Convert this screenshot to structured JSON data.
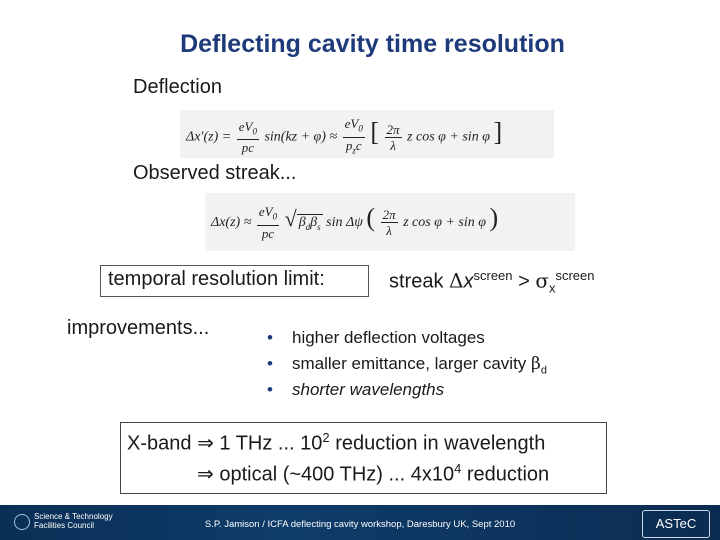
{
  "title": "Deflecting cavity time resolution",
  "labels": {
    "deflection": "Deflection",
    "observed": "Observed streak...",
    "limit": "temporal resolution limit:",
    "improvements": "improvements..."
  },
  "equations": {
    "eq1": {
      "lhs": "Δx′(z) =",
      "frac1_num": "eV",
      "frac1_num_sub": "0",
      "frac1_den": "pc",
      "mid": "sin(kz + φ) ≈",
      "frac2_num": "eV",
      "frac2_num_sub": "0",
      "frac2_den": "p",
      "frac2_den_sub": "z",
      "frac2_den_tail": "c",
      "open": "[",
      "frac3_num": "2π",
      "frac3_den": "λ",
      "rhs": "z cos φ + sin φ",
      "close": "]"
    },
    "eq2": {
      "lhs": "Δx(z) ≈",
      "frac1_num": "eV",
      "frac1_num_sub": "0",
      "frac1_den": "pc",
      "sqrt": "√",
      "beta_d": "β",
      "beta_d_sub": "d",
      "beta_s": "β",
      "beta_s_sub": "s",
      "sin_psi": "sin Δψ",
      "open": "(",
      "frac3_num": "2π",
      "frac3_den": "λ",
      "rhs": "z cos φ + sin φ",
      "close": ")"
    }
  },
  "streak": {
    "text": "streak ",
    "delta": "Δ",
    "x": "x",
    "sup1": "screen",
    "gt": " > ",
    "sigma": "σ",
    "sub": "x",
    "sup2": "screen"
  },
  "bullets": [
    {
      "dot": "•",
      "text": "higher deflection voltages"
    },
    {
      "dot": "•",
      "text": "smaller emittance, larger cavity ",
      "beta": "β",
      "beta_sub": "d"
    },
    {
      "dot": "•",
      "text": "shorter wavelengths"
    }
  ],
  "xband": {
    "line1_a": "X-band ",
    "arrow": "⇒",
    "line1_b": " 1 THz  ...  10",
    "line1_sup": "2",
    "line1_c": " reduction in wavelength",
    "line2_a": " optical (~400 THz) ... 4x10",
    "line2_sup": "4",
    "line2_b": " reduction"
  },
  "footer": {
    "text": "S.P. Jamison / ICFA deflecting cavity workshop, Daresbury UK, Sept 2010",
    "logo_line1": "Science & Technology",
    "logo_line2": "Facilities Council",
    "astec": "ASTeC"
  }
}
